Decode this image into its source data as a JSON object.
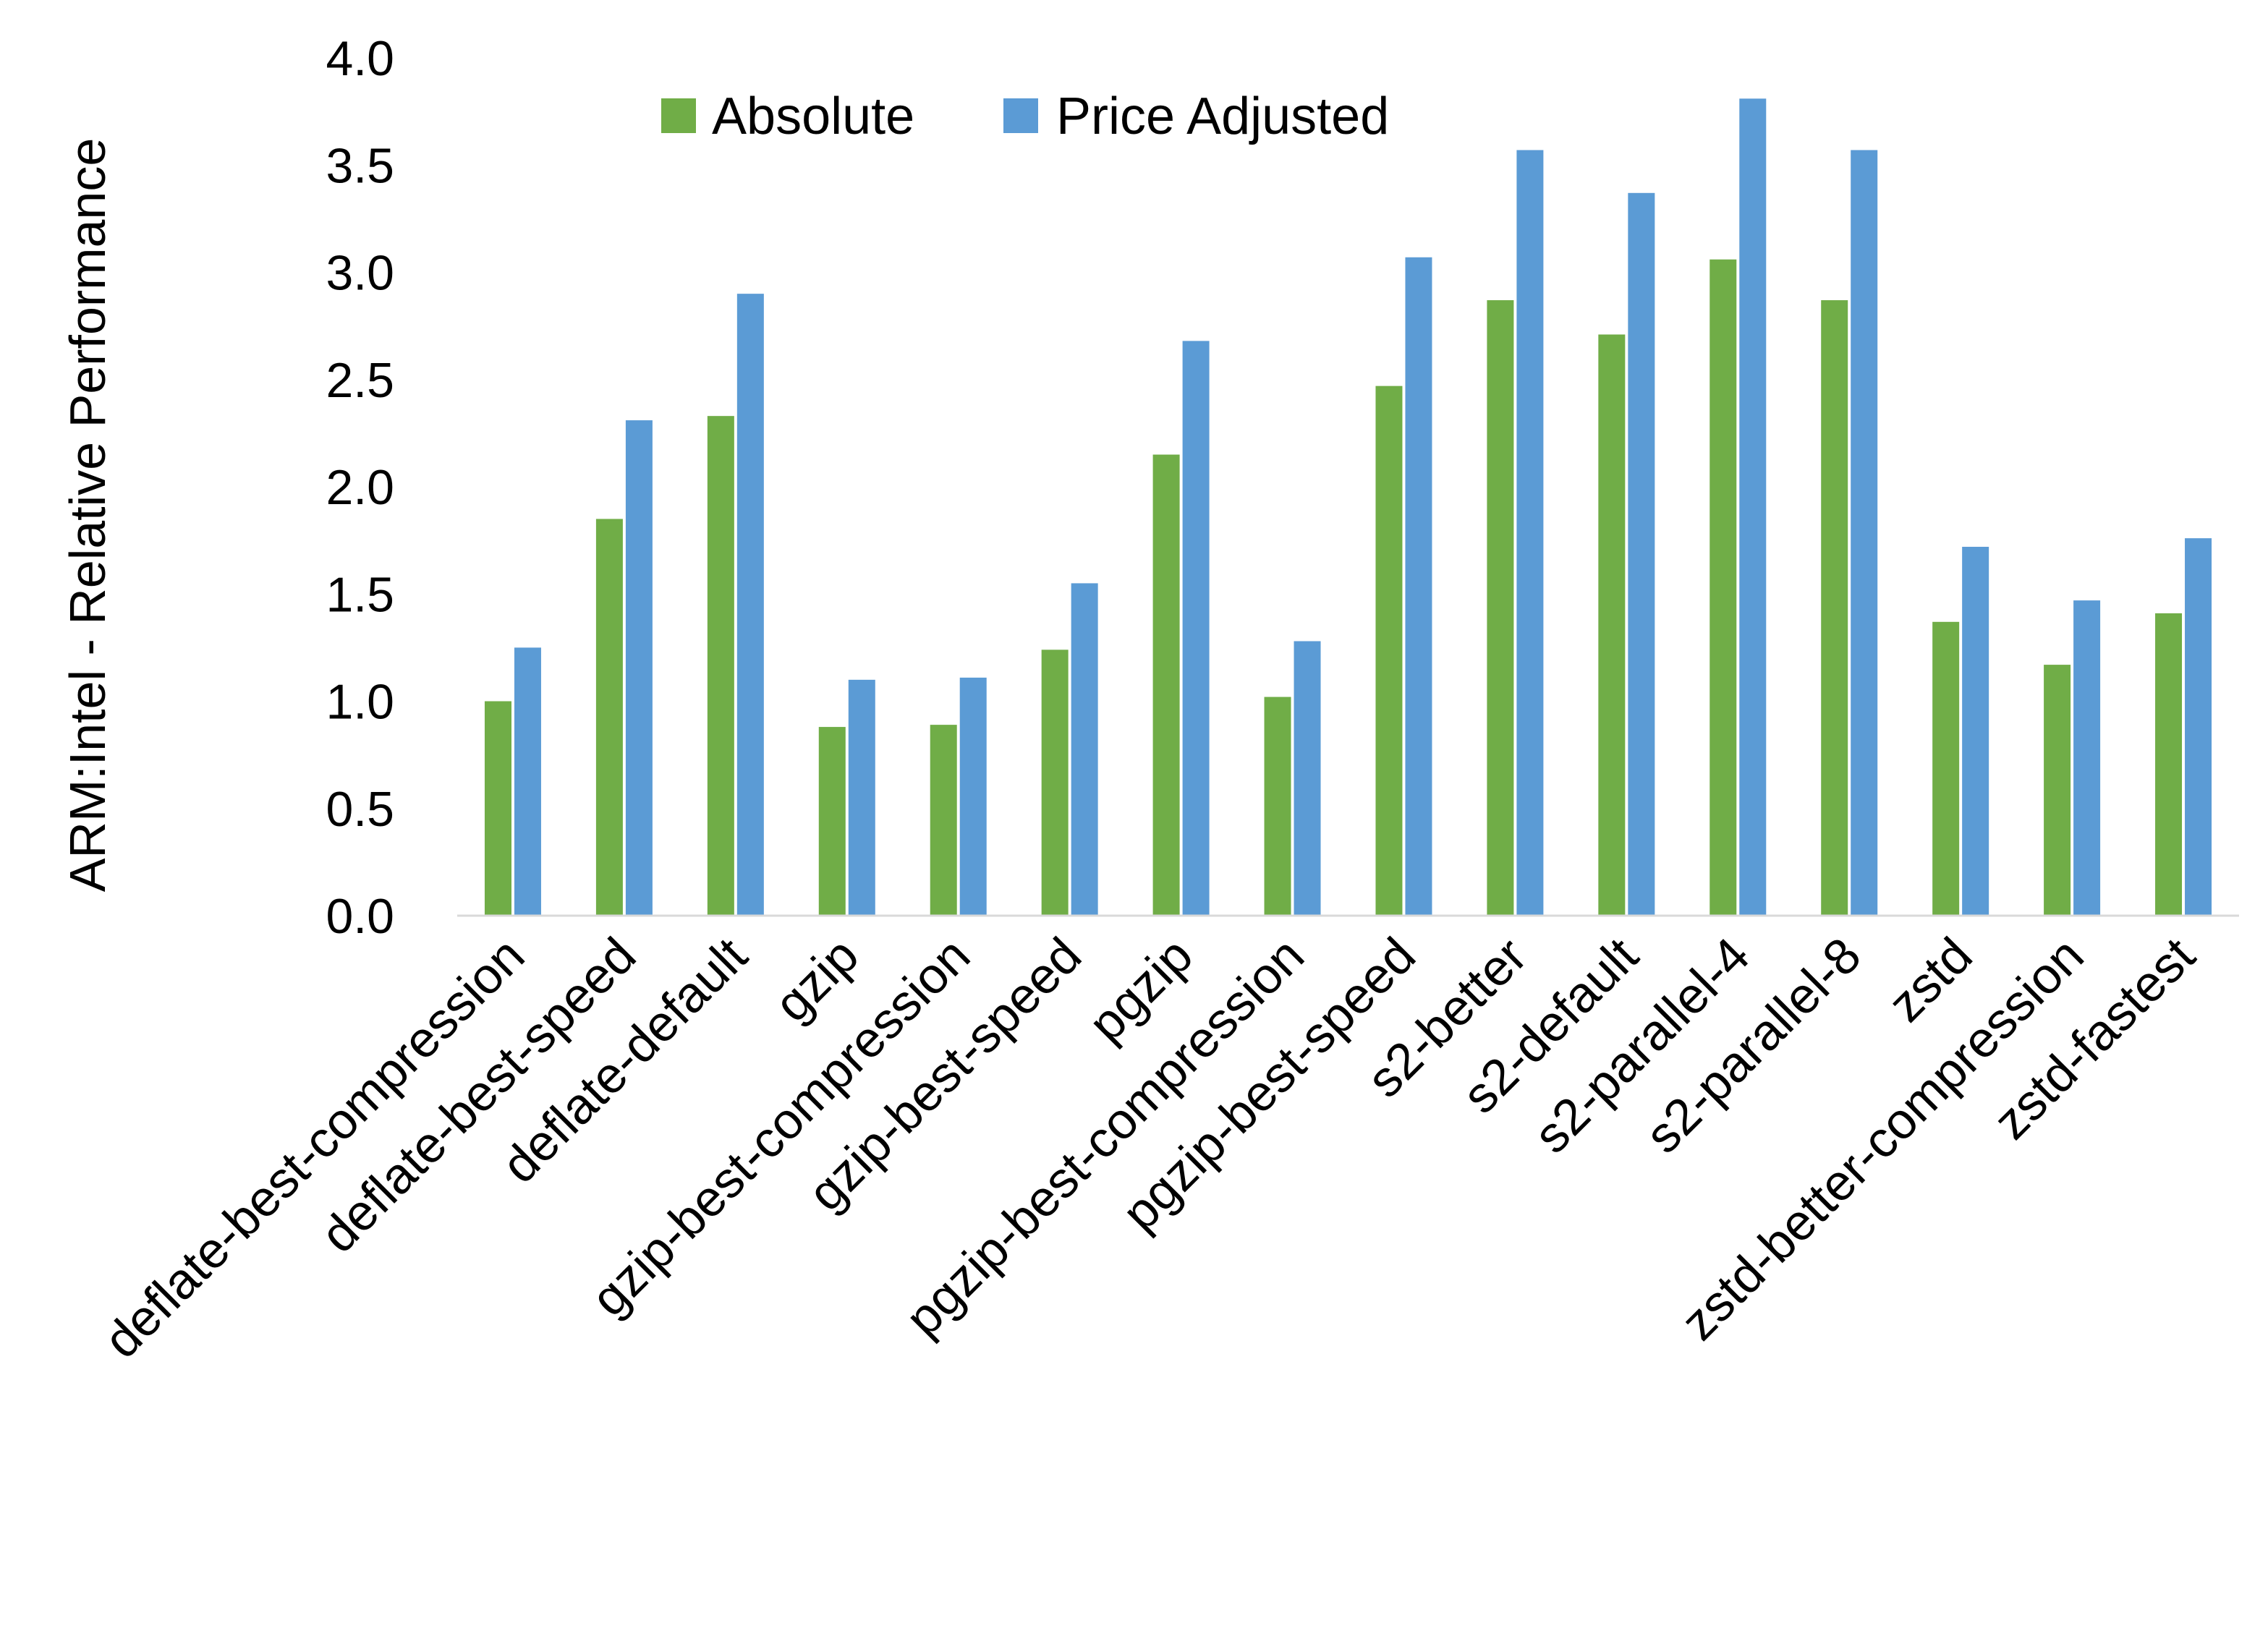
{
  "chart_data": {
    "type": "bar",
    "title": "",
    "xlabel": "",
    "ylabel": "ARM:Intel - Relative Performance",
    "ylim": [
      0,
      4
    ],
    "yticks": [
      "0.0",
      "0.5",
      "1.0",
      "1.5",
      "2.0",
      "2.5",
      "3.0",
      "3.5",
      "4.0"
    ],
    "grid": false,
    "legend_position": "top",
    "categories": [
      "deflate-best-compression",
      "deflate-best-speed",
      "deflate-default",
      "gzip",
      "gzip-best-compression",
      "gzip-best-speed",
      "pgzip",
      "pgzip-best-compression",
      "pgzip-best-speed",
      "s2-better",
      "s2-default",
      "s2-parallel-4",
      "s2-parallel-8",
      "zstd",
      "zstd-better-compression",
      "zstd-fastest"
    ],
    "series": [
      {
        "name": "Absolute",
        "color": "#70AD47",
        "values": [
          1.0,
          1.85,
          2.33,
          0.88,
          0.89,
          1.24,
          2.15,
          1.02,
          2.47,
          2.87,
          2.71,
          3.06,
          2.87,
          1.37,
          1.17,
          1.41
        ]
      },
      {
        "name": "Price Adjusted",
        "color": "#5B9BD5",
        "values": [
          1.25,
          2.31,
          2.9,
          1.1,
          1.11,
          1.55,
          2.68,
          1.28,
          3.07,
          3.57,
          3.37,
          3.81,
          3.57,
          1.72,
          1.47,
          1.76
        ]
      }
    ]
  }
}
